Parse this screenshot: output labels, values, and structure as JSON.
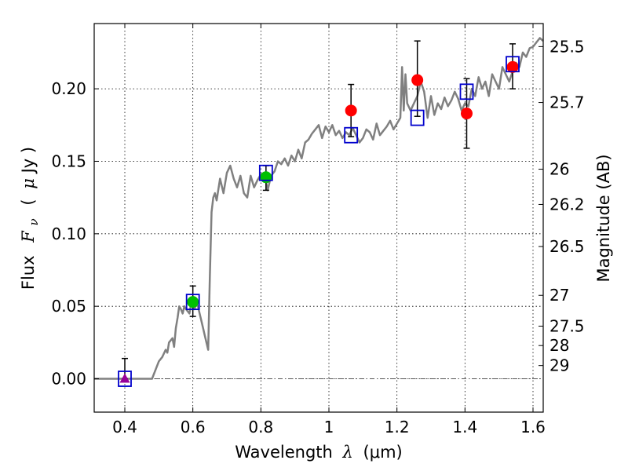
{
  "chart_data": {
    "type": "scatter",
    "title": "",
    "xlabel_text": "Wavelength",
    "xlabel_symbol": "λ",
    "xlabel_unit": "(μm)",
    "ylabel_text": "Flux",
    "ylabel_symbol": "F",
    "ylabel_subscript": "ν",
    "ylabel_unit_open": "(",
    "ylabel_unit_mu": "μ",
    "ylabel_unit_rest": "Jy )",
    "y2label": "Magnitude (AB)",
    "xlim": [
      0.31,
      1.63
    ],
    "ylim": [
      -0.023,
      0.245
    ],
    "grid": true,
    "x_ticks": [
      {
        "value": 0.4,
        "label": "0.4"
      },
      {
        "value": 0.6,
        "label": "0.6"
      },
      {
        "value": 0.8,
        "label": "0.8"
      },
      {
        "value": 1.0,
        "label": "1"
      },
      {
        "value": 1.2,
        "label": "1.2"
      },
      {
        "value": 1.4,
        "label": "1.4"
      },
      {
        "value": 1.6,
        "label": "1.6"
      }
    ],
    "y_ticks": [
      {
        "value": 0.0,
        "label": "0.00"
      },
      {
        "value": 0.05,
        "label": "0.05"
      },
      {
        "value": 0.1,
        "label": "0.10"
      },
      {
        "value": 0.15,
        "label": "0.15"
      },
      {
        "value": 0.2,
        "label": "0.20"
      }
    ],
    "mag_ticks": [
      {
        "mag": 25.5,
        "label": "25.5"
      },
      {
        "mag": 25.7,
        "label": "25.7"
      },
      {
        "mag": 26,
        "label": "26"
      },
      {
        "mag": 26.2,
        "label": "26.2"
      },
      {
        "mag": 26.5,
        "label": "26.5"
      },
      {
        "mag": 27,
        "label": "27"
      },
      {
        "mag": 27.5,
        "label": "27.5"
      },
      {
        "mag": 28,
        "label": "28"
      },
      {
        "mag": 29,
        "label": "29"
      }
    ],
    "colors": {
      "model": "#808080",
      "model_points": "#0000cc",
      "red_points": "#ff0000",
      "green_points": "#00c000",
      "triangle": "#990099",
      "errorbar": "#000000",
      "zero_line": "#555555"
    },
    "model_spectrum": {
      "x": [
        0.31,
        0.35,
        0.4,
        0.45,
        0.48,
        0.5,
        0.51,
        0.52,
        0.525,
        0.53,
        0.54,
        0.545,
        0.55,
        0.555,
        0.56,
        0.565,
        0.57,
        0.575,
        0.58,
        0.59,
        0.595,
        0.6,
        0.605,
        0.61,
        0.615,
        0.62,
        0.625,
        0.63,
        0.635,
        0.64,
        0.645,
        0.65,
        0.655,
        0.66,
        0.665,
        0.67,
        0.68,
        0.69,
        0.7,
        0.71,
        0.72,
        0.73,
        0.74,
        0.75,
        0.76,
        0.77,
        0.78,
        0.79,
        0.8,
        0.81,
        0.82,
        0.83,
        0.84,
        0.85,
        0.86,
        0.87,
        0.88,
        0.89,
        0.9,
        0.91,
        0.92,
        0.93,
        0.94,
        0.95,
        0.96,
        0.97,
        0.98,
        0.99,
        1.0,
        1.01,
        1.02,
        1.03,
        1.04,
        1.05,
        1.06,
        1.07,
        1.08,
        1.09,
        1.1,
        1.11,
        1.12,
        1.13,
        1.14,
        1.15,
        1.16,
        1.17,
        1.18,
        1.19,
        1.2,
        1.21,
        1.215,
        1.22,
        1.225,
        1.23,
        1.24,
        1.25,
        1.26,
        1.27,
        1.28,
        1.29,
        1.3,
        1.31,
        1.32,
        1.33,
        1.34,
        1.35,
        1.36,
        1.37,
        1.38,
        1.39,
        1.4,
        1.41,
        1.42,
        1.43,
        1.44,
        1.45,
        1.46,
        1.47,
        1.48,
        1.49,
        1.5,
        1.51,
        1.52,
        1.53,
        1.54,
        1.55,
        1.56,
        1.57,
        1.58,
        1.59,
        1.6,
        1.61,
        1.62,
        1.63
      ],
      "y": [
        0.0,
        0.0,
        0.0,
        0.0,
        0.0,
        0.012,
        0.015,
        0.02,
        0.018,
        0.025,
        0.028,
        0.022,
        0.035,
        0.042,
        0.05,
        0.048,
        0.045,
        0.05,
        0.048,
        0.045,
        0.052,
        0.05,
        0.048,
        0.052,
        0.05,
        0.045,
        0.04,
        0.035,
        0.03,
        0.025,
        0.02,
        0.07,
        0.115,
        0.125,
        0.128,
        0.123,
        0.138,
        0.128,
        0.142,
        0.147,
        0.138,
        0.132,
        0.14,
        0.128,
        0.125,
        0.14,
        0.132,
        0.137,
        0.141,
        0.142,
        0.13,
        0.14,
        0.143,
        0.15,
        0.148,
        0.152,
        0.147,
        0.154,
        0.15,
        0.158,
        0.152,
        0.163,
        0.165,
        0.169,
        0.172,
        0.175,
        0.166,
        0.174,
        0.17,
        0.175,
        0.168,
        0.171,
        0.166,
        0.17,
        0.168,
        0.173,
        0.168,
        0.163,
        0.166,
        0.172,
        0.17,
        0.165,
        0.176,
        0.168,
        0.171,
        0.174,
        0.178,
        0.172,
        0.176,
        0.18,
        0.215,
        0.185,
        0.21,
        0.19,
        0.185,
        0.19,
        0.195,
        0.205,
        0.198,
        0.18,
        0.195,
        0.182,
        0.19,
        0.186,
        0.194,
        0.188,
        0.192,
        0.198,
        0.193,
        0.185,
        0.19,
        0.188,
        0.2,
        0.195,
        0.208,
        0.2,
        0.205,
        0.195,
        0.21,
        0.205,
        0.2,
        0.215,
        0.21,
        0.205,
        0.212,
        0.218,
        0.215,
        0.225,
        0.222,
        0.228,
        0.229,
        0.232,
        0.235,
        0.233
      ]
    },
    "series": [
      {
        "name": "",
        "marker": "square",
        "color": "#0000cc",
        "points": [
          {
            "x": 0.4,
            "y": 0.0
          },
          {
            "x": 0.6,
            "y": 0.053
          },
          {
            "x": 0.815,
            "y": 0.142
          },
          {
            "x": 1.065,
            "y": 0.168
          },
          {
            "x": 1.26,
            "y": 0.18
          },
          {
            "x": 1.405,
            "y": 0.198
          },
          {
            "x": 1.54,
            "y": 0.217
          }
        ]
      },
      {
        "name": "",
        "marker": "circle",
        "color": "#ff0000",
        "points": [
          {
            "x": 1.065,
            "y": 0.185,
            "err_low": 0.167,
            "err_high": 0.203
          },
          {
            "x": 1.26,
            "y": 0.206,
            "err_low": 0.181,
            "err_high": 0.233
          },
          {
            "x": 1.405,
            "y": 0.183,
            "err_low": 0.159,
            "err_high": 0.207
          },
          {
            "x": 1.54,
            "y": 0.215,
            "err_low": 0.2,
            "err_high": 0.231
          }
        ]
      },
      {
        "name": "",
        "marker": "circle",
        "color": "#00c000",
        "points": [
          {
            "x": 0.6,
            "y": 0.053,
            "err_low": 0.043,
            "err_high": 0.064
          },
          {
            "x": 0.815,
            "y": 0.139,
            "err_low": 0.13,
            "err_high": 0.147
          }
        ]
      },
      {
        "name": "",
        "marker": "triangle",
        "color": "#990099",
        "points": [
          {
            "x": 0.4,
            "y": 0.0,
            "err_low": 0.0,
            "err_high": 0.014
          }
        ]
      }
    ]
  }
}
